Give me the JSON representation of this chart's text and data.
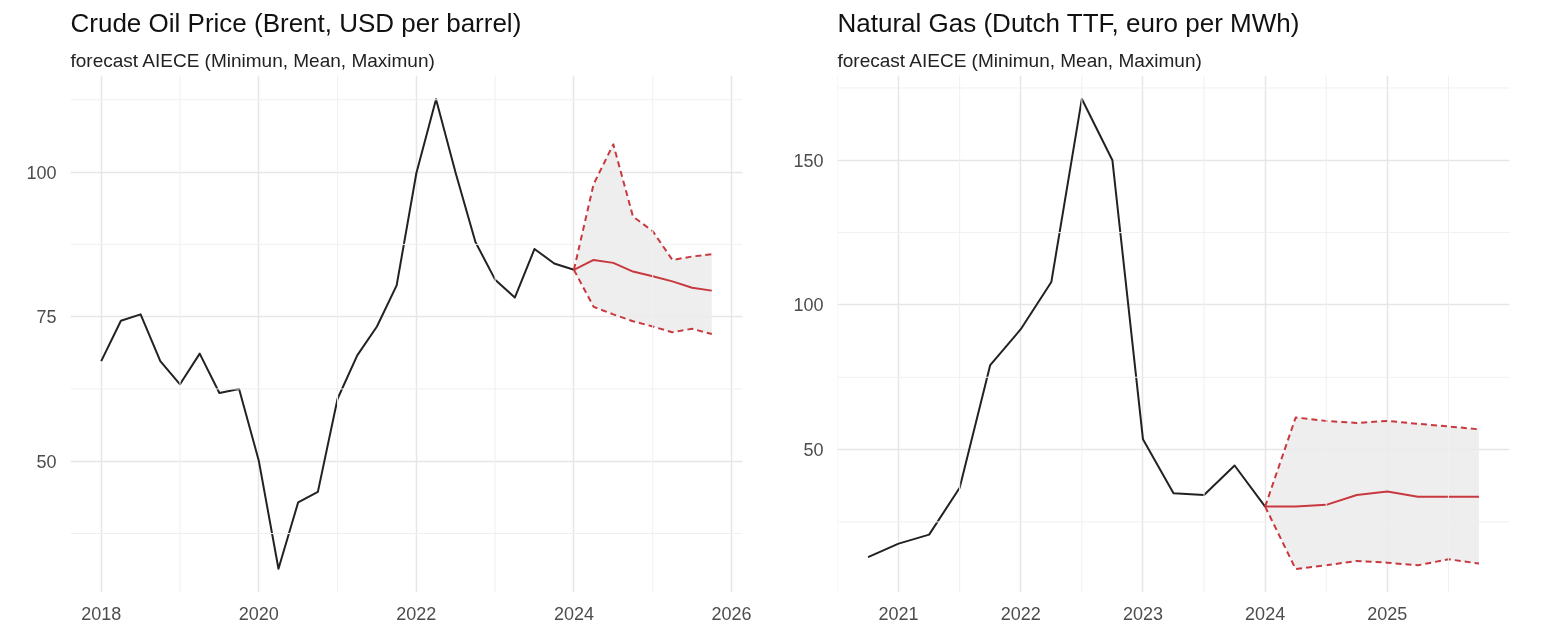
{
  "chart_data": [
    {
      "type": "line",
      "title": "Crude Oil Price (Brent, USD per barrel)",
      "subtitle": "forecast AIECE (Minimun, Mean, Maximun)",
      "xlim": [
        2017.61,
        2026.14
      ],
      "ylim": [
        27.3,
        116.7
      ],
      "xticks": [
        2018,
        2020,
        2022,
        2024,
        2026
      ],
      "yticks": [
        50,
        75,
        100
      ],
      "grid": true,
      "series": [
        {
          "color": "#222222",
          "x": [
            2018.0,
            2018.25,
            2018.5,
            2018.75,
            2019.0,
            2019.25,
            2019.5,
            2019.75,
            2020.0,
            2020.25,
            2020.5,
            2020.75,
            2021.0,
            2021.25,
            2021.5,
            2021.75,
            2022.0,
            2022.25,
            2022.5,
            2022.75,
            2023.0,
            2023.25,
            2023.5,
            2023.75,
            2024.0
          ],
          "values": [
            67.3,
            74.3,
            75.4,
            67.3,
            63.3,
            68.6,
            61.8,
            62.5,
            50.1,
            31.4,
            42.9,
            44.7,
            60.8,
            68.3,
            73.3,
            80.4,
            99.8,
            112.6,
            99.8,
            87.9,
            81.4,
            78.3,
            86.7,
            84.2,
            83.1
          ]
        },
        {
          "color": "#c8393f",
          "x": [
            2024.0,
            2024.25,
            2024.5,
            2024.75,
            2025.0,
            2025.25,
            2025.5,
            2025.75
          ],
          "values": [
            83.1,
            84.8,
            84.3,
            82.8,
            82.0,
            81.1,
            80.0,
            79.5
          ],
          "lower": [
            83.1,
            76.7,
            75.4,
            74.2,
            73.3,
            72.3,
            72.9,
            72.0
          ],
          "upper": [
            83.1,
            97.9,
            104.8,
            92.3,
            89.8,
            84.8,
            85.4,
            85.8
          ]
        },
        {
          "color": "#c8393f",
          "line_style": "dashed",
          "x": [
            2024.0,
            2024.25,
            2024.5,
            2024.75,
            2025.0,
            2025.25,
            2025.5,
            2025.75
          ],
          "values": [
            83.1,
            97.9,
            104.8,
            92.3,
            89.8,
            84.8,
            85.4,
            85.8
          ]
        },
        {
          "color": "#c8393f",
          "line_style": "dashed",
          "x": [
            2024.0,
            2024.25,
            2024.5,
            2024.75,
            2025.0,
            2025.25,
            2025.5,
            2025.75
          ],
          "values": [
            83.1,
            76.7,
            75.4,
            74.2,
            73.3,
            72.3,
            72.9,
            72.0
          ]
        }
      ]
    },
    {
      "type": "line",
      "title": "Natural Gas (Dutch TTF, euro per MWh)",
      "subtitle": "forecast AIECE (Minimun, Mean, Maximun)",
      "xlim": [
        2020.5,
        2026.0
      ],
      "ylim": [
        0.6,
        179.3
      ],
      "xticks": [
        2021,
        2022,
        2023,
        2024,
        2025
      ],
      "yticks": [
        50,
        100,
        150
      ],
      "grid": true,
      "series": [
        {
          "color": "#222222",
          "x": [
            2020.75,
            2021.0,
            2021.25,
            2021.5,
            2021.75,
            2022.0,
            2022.25,
            2022.5,
            2022.75,
            2023.0,
            2023.25,
            2023.5,
            2023.75,
            2024.0
          ],
          "values": [
            12.8,
            17.5,
            20.6,
            36.8,
            79.2,
            91.6,
            107.9,
            171.2,
            150.0,
            53.6,
            34.9,
            34.3,
            44.5,
            30.3
          ]
        },
        {
          "color": "#c8393f",
          "x": [
            2024.0,
            2024.25,
            2024.5,
            2024.75,
            2025.0,
            2025.25,
            2025.5,
            2025.75
          ],
          "values": [
            30.3,
            30.3,
            30.9,
            34.3,
            35.5,
            33.7,
            33.7,
            33.7
          ],
          "lower": [
            30.3,
            8.7,
            10.0,
            11.5,
            10.9,
            10.0,
            12.1,
            10.6
          ],
          "upper": [
            30.3,
            61.1,
            59.9,
            59.2,
            59.9,
            58.9,
            58.0,
            57.0
          ]
        },
        {
          "color": "#c8393f",
          "line_style": "dashed",
          "x": [
            2024.0,
            2024.25,
            2024.5,
            2024.75,
            2025.0,
            2025.25,
            2025.5,
            2025.75
          ],
          "values": [
            30.3,
            61.1,
            59.9,
            59.2,
            59.9,
            58.9,
            58.0,
            57.0
          ]
        },
        {
          "color": "#c8393f",
          "line_style": "dashed",
          "x": [
            2024.0,
            2024.25,
            2024.5,
            2024.75,
            2025.0,
            2025.25,
            2025.5,
            2025.75
          ],
          "values": [
            30.3,
            8.7,
            10.0,
            11.5,
            10.9,
            10.0,
            12.1,
            10.6
          ]
        }
      ]
    }
  ]
}
